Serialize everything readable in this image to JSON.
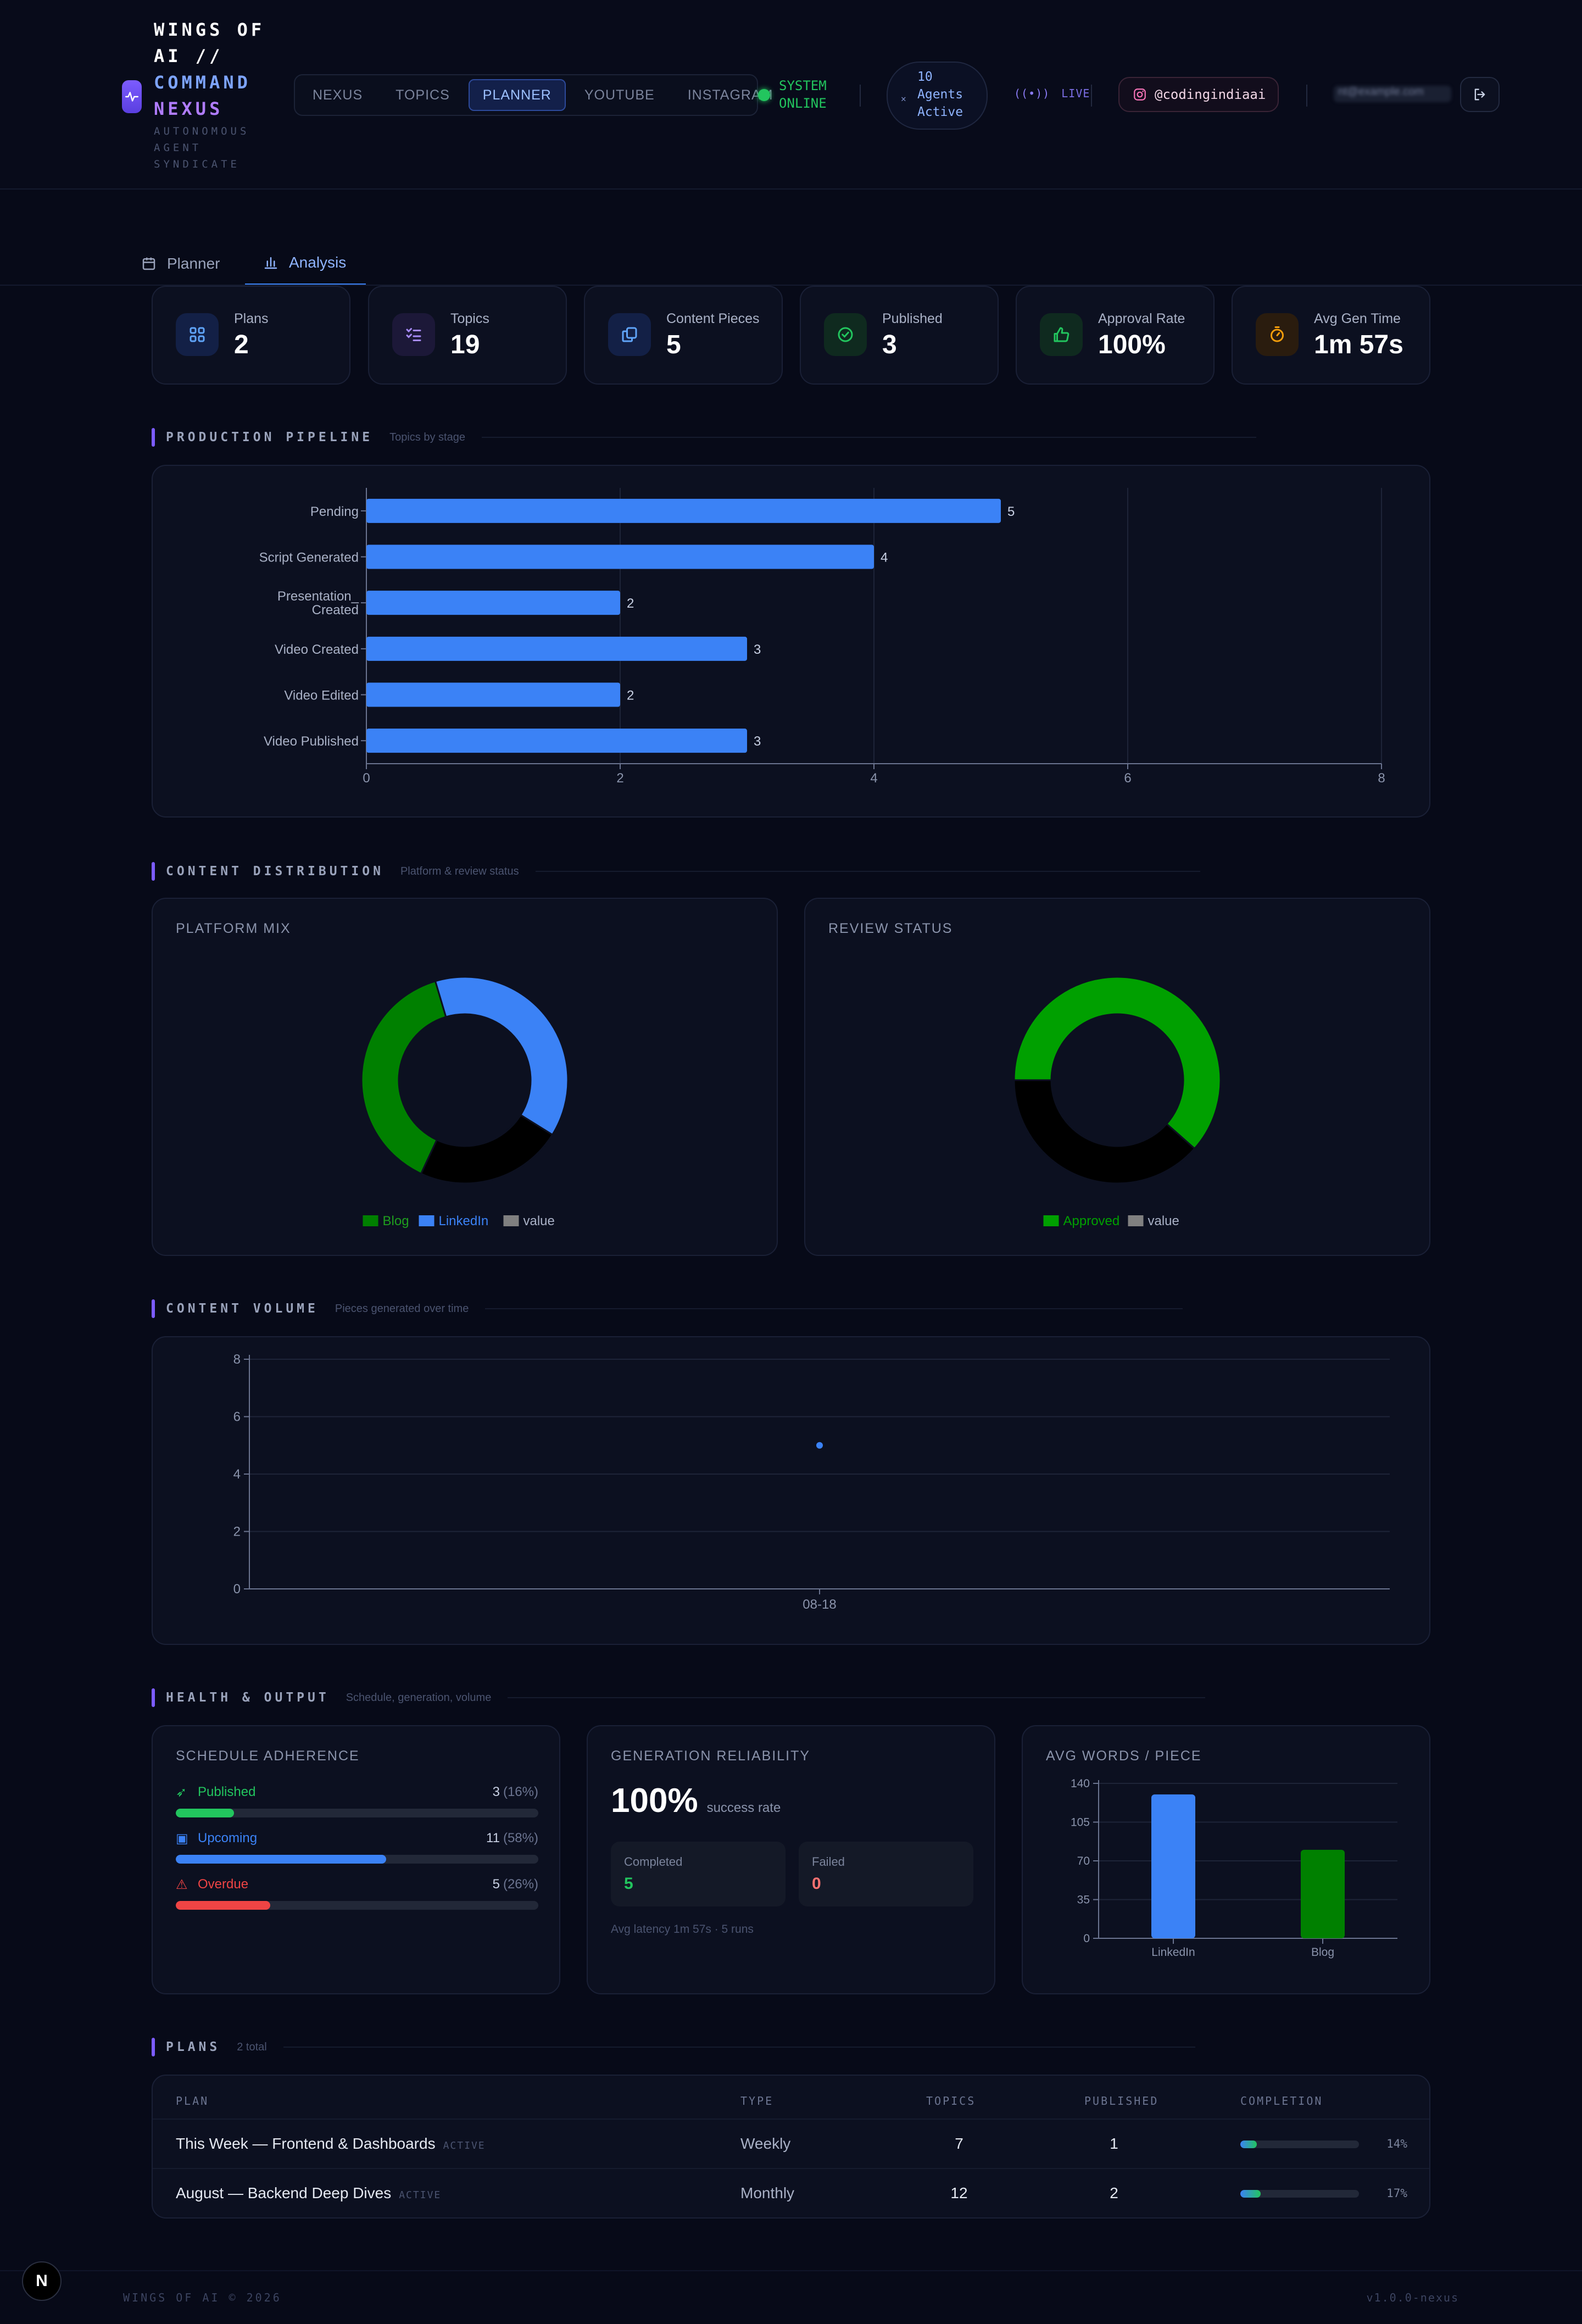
{
  "header": {
    "brand_lines": [
      "WINGS OF",
      "AI //",
      "COMMAND",
      "NEXUS"
    ],
    "tagline_lines": [
      "AUTONOMOUS",
      "AGENT",
      "SYNDICATE"
    ],
    "nav_tabs": [
      {
        "label": "NEXUS",
        "active": false
      },
      {
        "label": "TOPICS",
        "active": false
      },
      {
        "label": "PLANNER",
        "active": true
      },
      {
        "label": "YOUTUBE",
        "active": false
      },
      {
        "label": "INSTAGRAM",
        "active": false
      }
    ],
    "system_status": [
      "SYSTEM",
      "ONLINE"
    ],
    "agents": [
      "10",
      "Agents",
      "Active"
    ],
    "live_label": "LIVE",
    "instagram_handle": "@codingindiaai",
    "user_email": "nt@example.com"
  },
  "sub_tabs": [
    {
      "label": "Planner",
      "icon": "calendar-icon",
      "active": false
    },
    {
      "label": "Analysis",
      "icon": "bar-chart-icon",
      "active": true
    }
  ],
  "stats": [
    {
      "label": "Plans",
      "value": "2",
      "icon": "grid-icon",
      "color": "#60a5fa"
    },
    {
      "label": "Topics",
      "value": "19",
      "icon": "checklist-icon",
      "color": "#a78bfa"
    },
    {
      "label": "Content Pieces",
      "value": "5",
      "icon": "copy-icon",
      "color": "#60a5fa"
    },
    {
      "label": "Published",
      "value": "3",
      "icon": "check-circle-icon",
      "color": "#22c55e"
    },
    {
      "label": "Approval Rate",
      "value": "100%",
      "icon": "thumbs-up-icon",
      "color": "#22c55e"
    },
    {
      "label": "Avg Gen Time",
      "value": "1m 57s",
      "icon": "timer-icon",
      "color": "#f59e0b"
    }
  ],
  "sections": {
    "pipeline": {
      "title": "PRODUCTION PIPELINE",
      "subtitle": "Topics by stage"
    },
    "distribution": {
      "title": "CONTENT DISTRIBUTION",
      "subtitle": "Platform & review status"
    },
    "volume": {
      "title": "CONTENT VOLUME",
      "subtitle": "Pieces generated over time"
    },
    "health": {
      "title": "HEALTH & OUTPUT",
      "subtitle": "Schedule, generation, volume"
    },
    "plans": {
      "title": "PLANS",
      "subtitle": "2 total"
    }
  },
  "chart_data": [
    {
      "type": "bar",
      "orientation": "horizontal",
      "categories": [
        "Pending",
        "Script Generated",
        "Presentation_ Created",
        "Video Created",
        "Video Edited",
        "Video Published"
      ],
      "values": [
        5,
        4,
        2,
        3,
        2,
        3
      ],
      "xlim": [
        0,
        8
      ],
      "ticks": [
        0,
        2,
        4,
        6,
        8
      ],
      "color": "#3b82f6",
      "grid": true
    },
    {
      "type": "pie",
      "donut": true,
      "title": "PLATFORM MIX",
      "slices": [
        {
          "name": "Blog",
          "value": 1,
          "color": "#008000"
        },
        {
          "name": "LinkedIn",
          "value": 1,
          "color": "#3b82f6"
        },
        {
          "name": "value",
          "value": 0.6,
          "color": "#000000"
        }
      ],
      "legend": [
        "Blog",
        "LinkedIn",
        "value"
      ],
      "legend_colors": [
        "#008000",
        "#3b82f6",
        "#808080"
      ],
      "legend_position": "bottom"
    },
    {
      "type": "pie",
      "donut": true,
      "title": "REVIEW STATUS",
      "slices": [
        {
          "name": "Approved",
          "value": 1.6,
          "color": "#00a000"
        },
        {
          "name": "value",
          "value": 1,
          "color": "#000000"
        }
      ],
      "legend": [
        "Approved",
        "value"
      ],
      "legend_colors": [
        "#00a000",
        "#808080"
      ],
      "legend_position": "bottom"
    },
    {
      "type": "line",
      "x": [
        "08-18"
      ],
      "y": [
        5
      ],
      "ylim": [
        0,
        8
      ],
      "yticks": [
        0,
        2,
        4,
        6,
        8
      ],
      "color": "#3b82f6",
      "grid": true
    },
    {
      "type": "bar",
      "title": "AVG WORDS / PIECE",
      "categories": [
        "LinkedIn",
        "Blog"
      ],
      "values": [
        130,
        80
      ],
      "colors": [
        "#3b82f6",
        "#008000"
      ],
      "ylim": [
        0,
        140
      ],
      "yticks": [
        0,
        35,
        70,
        105,
        140
      ],
      "grid": true
    }
  ],
  "schedule": {
    "title": "SCHEDULE ADHERENCE",
    "items": [
      {
        "label": "Published",
        "count": "3",
        "pct": "(16%)",
        "fraction": 0.16,
        "color": "#22c55e",
        "icon": "rocket-icon"
      },
      {
        "label": "Upcoming",
        "count": "11",
        "pct": "(58%)",
        "fraction": 0.58,
        "color": "#3b82f6",
        "icon": "calendar-clock-icon"
      },
      {
        "label": "Overdue",
        "count": "5",
        "pct": "(26%)",
        "fraction": 0.26,
        "color": "#ef4444",
        "icon": "warning-icon"
      }
    ]
  },
  "reliability": {
    "title": "GENERATION RELIABILITY",
    "rate": "100%",
    "rate_label": "success rate",
    "completed_label": "Completed",
    "completed_value": "5",
    "failed_label": "Failed",
    "failed_value": "0",
    "footnote": "Avg latency 1m 57s · 5 runs"
  },
  "plans_table": {
    "headers": [
      "PLAN",
      "TYPE",
      "TOPICS",
      "PUBLISHED",
      "COMPLETION"
    ],
    "rows": [
      {
        "plan": "This Week — Frontend & Dashboards",
        "status": "ACTIVE",
        "type": "Weekly",
        "topics": "7",
        "published": "1",
        "completion": "14%",
        "fraction": 0.14
      },
      {
        "plan": "August — Backend Deep Dives",
        "status": "ACTIVE",
        "type": "Monthly",
        "topics": "12",
        "published": "2",
        "completion": "17%",
        "fraction": 0.17
      }
    ]
  },
  "footer": {
    "copyright": "WINGS OF AI © 2026",
    "version": "v1.0.0-nexus",
    "badge": "N"
  }
}
